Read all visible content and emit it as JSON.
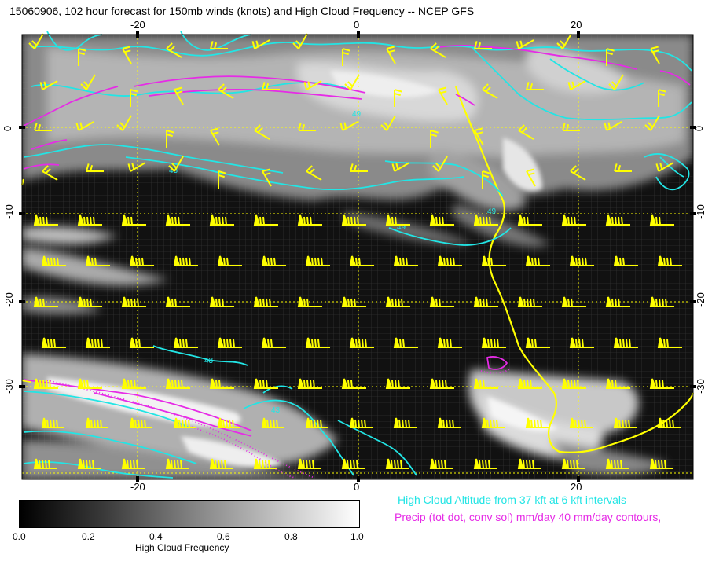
{
  "title": "15060906, 102 hour forecast for 150mb winds (knots) and High Cloud Frequency -- NCEP GFS",
  "axes": {
    "x_ticks_top": [
      "-20",
      "0",
      "20"
    ],
    "x_ticks_bottom": [
      "-20",
      "0",
      "20"
    ],
    "y_ticks_left": [
      "0",
      "-10",
      "-20",
      "-30"
    ],
    "y_ticks_right": [
      "0",
      "-10",
      "-20",
      "-30"
    ]
  },
  "legend": {
    "cyan_text": "High Cloud Altitude from 37 kft at 6 kft intervals",
    "magenta_text": "Precip (tot dot, conv sol) mm/day 40 mm/day contours,",
    "cyan_color": "#22e5e5",
    "magenta_color": "#e62be6",
    "wind_barb_color": "#ffff00",
    "coast_color": "#ffff00"
  },
  "colorbar": {
    "labels": [
      "0.0",
      "0.2",
      "0.4",
      "0.6",
      "0.8",
      "1.0"
    ],
    "title": "High Cloud Frequency",
    "range": [
      0.0,
      1.0
    ]
  },
  "contour_labels": [
    "49",
    "49",
    "49",
    "43",
    "43",
    "43"
  ]
}
